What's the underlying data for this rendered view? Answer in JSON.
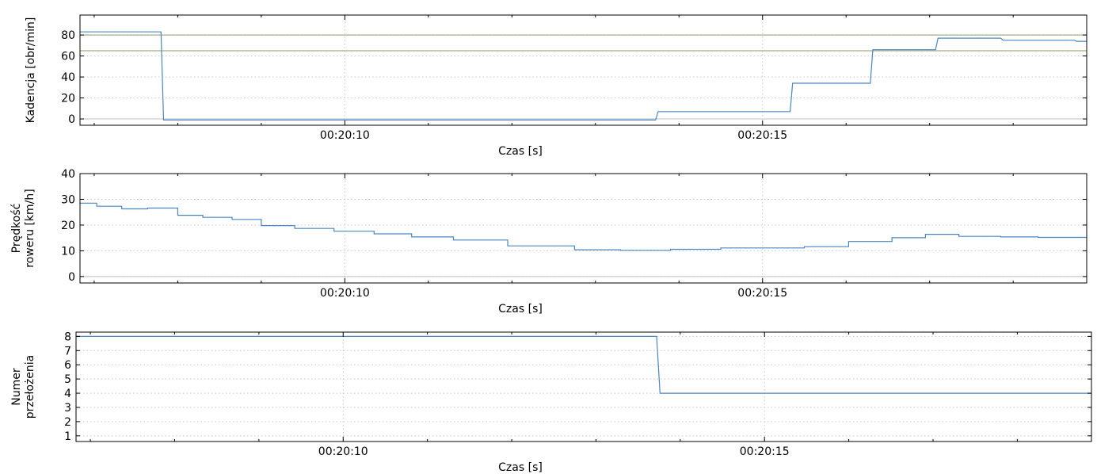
{
  "chart_data": [
    {
      "type": "line",
      "ylabel": "Kadencja [obr/min]",
      "xlabel": "Czas [s]",
      "xlim": [
        6.83,
        18.88
      ],
      "ylim": [
        -6,
        99
      ],
      "yticks": [
        0,
        20,
        40,
        60,
        80
      ],
      "xticks": [
        10,
        15
      ],
      "xtick_labels": [
        "00:20:10",
        "00:20:15"
      ],
      "xminor": [
        7,
        8,
        9,
        11,
        12,
        13,
        14,
        16,
        17,
        18
      ],
      "reference_lines": [
        {
          "y": 80,
          "color": "#8a9a6a"
        },
        {
          "y": 65,
          "color": "#8a9a6a"
        },
        {
          "y": 0,
          "color": "#c0c0c0"
        }
      ],
      "series": [
        {
          "color": "#4a86c0",
          "x": [
            6.83,
            7.8,
            7.83,
            13.72,
            13.75,
            15.33,
            15.36,
            16.29,
            16.32,
            17.07,
            17.1,
            17.85,
            17.88,
            18.73,
            18.76,
            18.88
          ],
          "y": [
            83,
            83,
            -1,
            -1,
            7,
            7,
            34,
            34,
            66,
            66,
            77,
            77,
            75,
            75,
            74,
            74
          ]
        }
      ]
    },
    {
      "type": "line",
      "ylabel": "Prędkość roweru [km/h]",
      "ylabel_lines": [
        "Prędkość",
        "roweru [km/h]"
      ],
      "xlabel": "Czas [s]",
      "xlim": [
        6.83,
        18.88
      ],
      "ylim": [
        -2.5,
        40
      ],
      "yticks": [
        0,
        10,
        20,
        30,
        40
      ],
      "xticks": [
        10,
        15
      ],
      "xtick_labels": [
        "00:20:10",
        "00:20:15"
      ],
      "xminor": [
        7,
        8,
        9,
        11,
        12,
        13,
        14,
        16,
        17,
        18
      ],
      "reference_lines": [
        {
          "y": 0,
          "color": "#c0c0c0"
        }
      ],
      "series": [
        {
          "color": "#4a86c0",
          "step": true,
          "x": [
            6.83,
            7.03,
            7.33,
            7.64,
            8.0,
            8.3,
            8.65,
            9.0,
            9.4,
            9.87,
            10.35,
            10.8,
            11.3,
            11.95,
            12.75,
            13.3,
            13.9,
            14.5,
            15.5,
            16.03,
            16.55,
            16.95,
            17.35,
            17.85,
            18.3,
            18.88
          ],
          "y": [
            28.5,
            27.3,
            26.3,
            26.6,
            23.8,
            23.0,
            22.2,
            19.8,
            18.7,
            17.6,
            16.6,
            15.4,
            14.2,
            11.9,
            10.4,
            10.2,
            10.6,
            11.1,
            11.6,
            13.6,
            15.1,
            16.4,
            15.6,
            15.4,
            15.2,
            15.2
          ]
        }
      ]
    },
    {
      "type": "line",
      "ylabel": "Numer przełożenia",
      "ylabel_lines": [
        "Numer",
        "przełożenia"
      ],
      "xlabel": "Czas [s]",
      "xlim": [
        6.83,
        18.88
      ],
      "ylim": [
        0.6,
        8.3
      ],
      "yticks": [
        1,
        2,
        3,
        4,
        5,
        6,
        7,
        8
      ],
      "xticks": [
        10,
        15
      ],
      "xtick_labels": [
        "00:20:10",
        "00:20:15"
      ],
      "xminor": [
        7,
        8,
        9,
        11,
        12,
        13,
        14,
        16,
        17,
        18
      ],
      "reference_lines": [],
      "series": [
        {
          "color": "#4a86c0",
          "x": [
            6.83,
            13.72,
            13.76,
            18.88
          ],
          "y": [
            8,
            8,
            4,
            4
          ]
        }
      ]
    }
  ]
}
